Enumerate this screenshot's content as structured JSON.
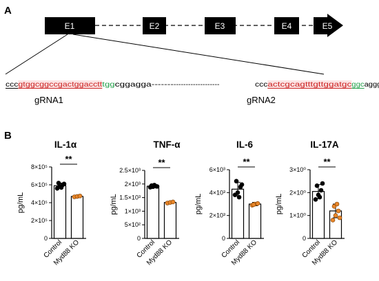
{
  "panel_a": {
    "letter": "A",
    "exons": [
      "E1",
      "E2",
      "E3",
      "E4",
      "E5"
    ],
    "sequence_left": [
      {
        "text": "ccc",
        "color": "#000000",
        "underline": true
      },
      {
        "text": "gtggcggccgactggacctt",
        "color": "#cc2222",
        "underline": true,
        "highlight": true
      },
      {
        "text": "tgg",
        "color": "#22a04a",
        "underline": false
      },
      {
        "text": "cggagga-------",
        "color": "#000000",
        "underline": false
      }
    ],
    "sequence_gap": "-------------------",
    "sequence_right": [
      {
        "text": "ccc",
        "color": "#000000",
        "underline": false
      },
      {
        "text": "actcgcagtttgttggatgc",
        "color": "#cc2222",
        "underline": true,
        "highlight": true
      },
      {
        "text": "ggc",
        "color": "#22a04a",
        "underline": true
      },
      {
        "text": "aggggcg",
        "color": "#000000",
        "underline": false
      }
    ],
    "grna1": "gRNA1",
    "grna2": "gRNA2"
  },
  "panel_b": {
    "letter": "B",
    "ylabel": "pg/mL",
    "significance": "**",
    "colors": {
      "control": "#000000",
      "ko": "#e8862a"
    },
    "charts": [
      {
        "title": "IL-1α",
        "ticks": [
          "0",
          "2×10⁵",
          "4×10⁵",
          "6×10⁵",
          "8×10⁵"
        ],
        "chart_data": {
          "type": "bar",
          "categories": [
            "Control",
            "Myd88 KO"
          ],
          "values": [
            590000,
            470000
          ],
          "errors": [
            30000,
            10000
          ],
          "points": [
            [
              560000,
              580000,
              600000,
              620000,
              570000,
              610000
            ],
            [
              465000,
              470000,
              475000
            ]
          ],
          "ylim": [
            0,
            800000
          ]
        }
      },
      {
        "title": "TNF-α",
        "ticks": [
          "0",
          "5×10²",
          "1×10³",
          "1.5×10³",
          "2×10³",
          "2.5×10³"
        ],
        "chart_data": {
          "type": "bar",
          "categories": [
            "Control",
            "Myd88 KO"
          ],
          "values": [
            1920,
            1320
          ],
          "errors": [
            60,
            40
          ],
          "points": [
            [
              1880,
              1900,
              1920,
              1940,
              1960,
              1910
            ],
            [
              1300,
              1320,
              1340
            ]
          ],
          "ylim": [
            0,
            2500
          ]
        }
      },
      {
        "title": "IL-6",
        "ticks": [
          "0",
          "2×10³",
          "4×10³",
          "6×10³"
        ],
        "chart_data": {
          "type": "bar",
          "categories": [
            "Control",
            "Myd88 KO"
          ],
          "values": [
            4300,
            3000
          ],
          "errors": [
            600,
            150
          ],
          "points": [
            [
              3800,
              4000,
              4500,
              5000,
              3600,
              4700
            ],
            [
              2900,
              3000,
              3050,
              2950
            ]
          ],
          "ylim": [
            0,
            6000
          ]
        }
      },
      {
        "title": "IL-17A",
        "ticks": [
          "0",
          "1×10⁰",
          "2×10⁰",
          "3×10⁰"
        ],
        "chart_data": {
          "type": "bar",
          "categories": [
            "Control",
            "Myd88 KO"
          ],
          "values": [
            2.05,
            1.2
          ],
          "errors": [
            0.3,
            0.3
          ],
          "points": [
            [
              1.7,
              1.9,
              2.1,
              2.3,
              1.8,
              2.4
            ],
            [
              0.8,
              1.0,
              1.2,
              1.4,
              1.5,
              0.9
            ]
          ],
          "ylim": [
            0,
            3
          ]
        }
      }
    ]
  }
}
